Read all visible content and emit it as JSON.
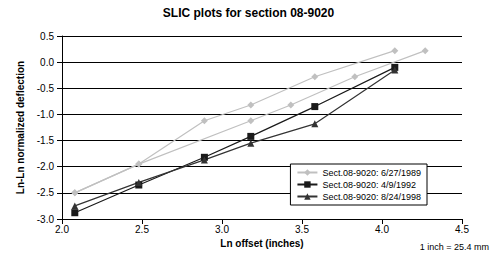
{
  "chart_data": {
    "type": "line",
    "title": "SLIC plots for section 08-9020",
    "x_label": "Ln offset (inches)",
    "y_label": "Ln-Ln normalized deflection",
    "annotation": "1 inch = 25.4 mm",
    "xlim": [
      2.0,
      4.5
    ],
    "xticks": [
      {
        "value": 2.0,
        "label": "2.0"
      },
      {
        "value": 2.5,
        "label": "2.5"
      },
      {
        "value": 3.0,
        "label": "3.0"
      },
      {
        "value": 3.5,
        "label": "3.5"
      },
      {
        "value": 4.0,
        "label": "4.0"
      },
      {
        "value": 4.5,
        "label": "4.5"
      }
    ],
    "ylim": [
      -3.0,
      0.5
    ],
    "yticks": [
      {
        "value": -3.0,
        "label": "-3.0"
      },
      {
        "value": -2.5,
        "label": "-2.5"
      },
      {
        "value": -2.0,
        "label": "-2.0"
      },
      {
        "value": -1.5,
        "label": "-1.5"
      },
      {
        "value": -1.0,
        "label": "-1.0"
      },
      {
        "value": -0.5,
        "label": "-0.5"
      },
      {
        "value": 0.0,
        "label": "0.0"
      },
      {
        "value": 0.5,
        "label": "0.5"
      }
    ],
    "grid": true,
    "legend": "lower right",
    "series": [
      {
        "name": "Sect.08-9020: 6/27/1989",
        "color": "#c0c0c0",
        "marker": "diamond",
        "x": [
          2.08,
          2.48,
          2.89,
          3.18,
          3.58,
          4.08
        ],
        "values": [
          -2.5,
          -1.95,
          -1.12,
          -0.82,
          -0.28,
          0.22
        ]
      },
      {
        "name": "Sect.08-9020: 6/27/1989",
        "color": "#c0c0c0",
        "marker": "diamond",
        "x": [
          2.08,
          2.48,
          3.18,
          3.43,
          3.83,
          4.27
        ],
        "values": [
          -2.5,
          -1.95,
          -1.12,
          -0.82,
          -0.28,
          0.22
        ]
      },
      {
        "name": "Sect.08-9020: 4/9/1992",
        "color": "#1a1a1a",
        "marker": "square",
        "x": [
          2.08,
          2.48,
          2.89,
          3.18,
          3.58,
          4.08
        ],
        "values": [
          -2.88,
          -2.35,
          -1.82,
          -1.42,
          -0.85,
          -0.1
        ]
      },
      {
        "name": "Sect.08-9020: 8/24/1998",
        "color": "#333333",
        "marker": "triangle",
        "x": [
          2.08,
          2.48,
          2.89,
          3.18,
          3.58,
          4.08
        ],
        "values": [
          -2.75,
          -2.3,
          -1.87,
          -1.55,
          -1.18,
          -0.15
        ]
      }
    ]
  }
}
